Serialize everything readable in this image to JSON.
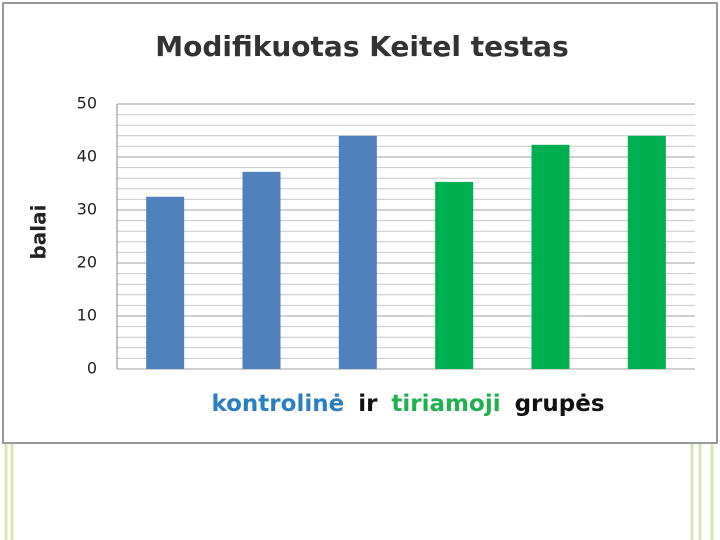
{
  "chart_data": {
    "type": "bar",
    "title": "Modifikuotas Keitel testas",
    "ylabel": "balai",
    "xlabel_parts": [
      {
        "text": "kontrolinė",
        "color": "#2a7fc1"
      },
      {
        "text": "ir",
        "color": "#111111"
      },
      {
        "text": "tiriamoji",
        "color": "#1fb050"
      },
      {
        "text": "grupės",
        "color": "#111111"
      }
    ],
    "categories": [
      null,
      null,
      null,
      null,
      null,
      null
    ],
    "values": [
      32.5,
      37.2,
      44,
      35.3,
      42.3,
      44
    ],
    "colors": [
      "#4f81bd",
      "#4f81bd",
      "#4f81bd",
      "#00b050",
      "#00b050",
      "#00b050"
    ],
    "ylim": [
      0,
      50
    ],
    "yticks": [
      0,
      10,
      20,
      30,
      40,
      50
    ],
    "minor_yticks": [
      2,
      4,
      6,
      8,
      12,
      14,
      16,
      18,
      22,
      24,
      26,
      28,
      32,
      34,
      36,
      38,
      42,
      44,
      46,
      48
    ],
    "grid": true
  }
}
